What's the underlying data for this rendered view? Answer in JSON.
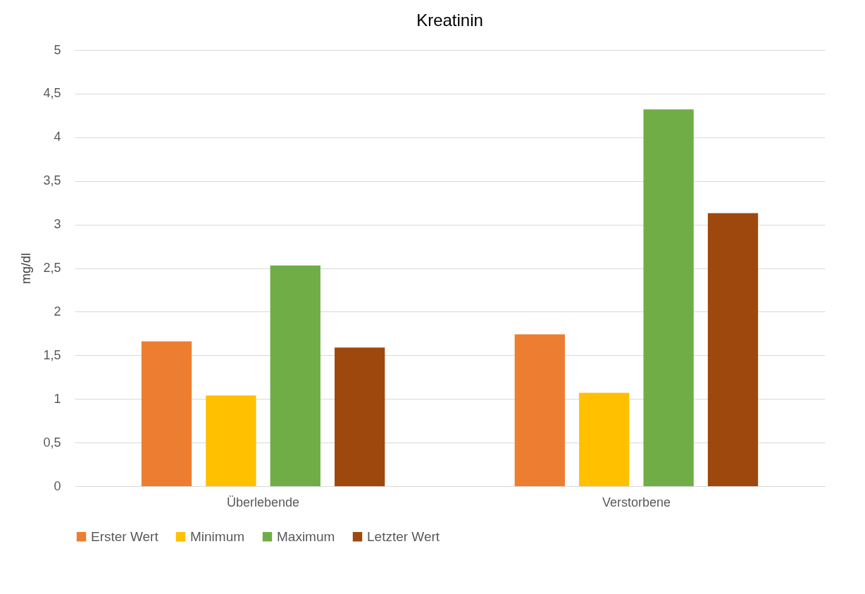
{
  "chart_data": {
    "type": "bar",
    "title": "Kreatinin",
    "ylabel": "mg/dl",
    "categories": [
      "Überlebende",
      "Verstorbene"
    ],
    "series": [
      {
        "name": "Erster Wert",
        "color": "#ed7d31",
        "values": [
          1.66,
          1.74
        ]
      },
      {
        "name": "Minimum",
        "color": "#ffc000",
        "values": [
          1.04,
          1.07
        ]
      },
      {
        "name": "Maximum",
        "color": "#70ad47",
        "values": [
          2.53,
          4.32
        ]
      },
      {
        "name": "Letzter Wert",
        "color": "#9e480e",
        "values": [
          1.59,
          3.13
        ]
      }
    ],
    "ylim": [
      0,
      5
    ],
    "yticks": [
      0,
      {
        "value": 0.5,
        "label": "0,5"
      },
      1,
      {
        "value": 1.5,
        "label": "1,5"
      },
      2,
      {
        "value": 2.5,
        "label": "2,5"
      },
      3,
      {
        "value": 3.5,
        "label": "3,5"
      },
      4,
      {
        "value": 4.5,
        "label": "4,5"
      },
      5
    ],
    "grid": "y",
    "legend": "bottom"
  }
}
